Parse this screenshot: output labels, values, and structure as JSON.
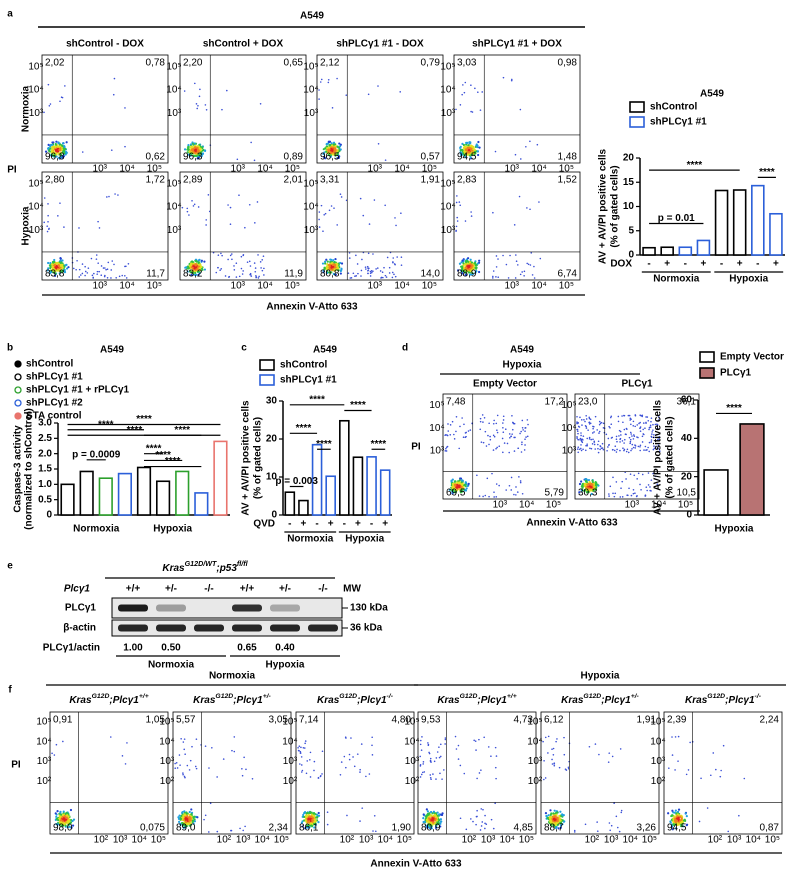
{
  "panel_a": {
    "label": "a",
    "title": "A549",
    "flow": {
      "columns": [
        "shControl - DOX",
        "shControl + DOX",
        "shPLCγ1 #1 - DOX",
        "shPLCγ1 #1 + DOX"
      ],
      "rows": [
        "Normoxia",
        "Hypoxia"
      ],
      "y_label": "PI",
      "x_label": "Annexin V-Atto 633",
      "ticks": [
        "10³",
        "10⁴",
        "10⁵"
      ],
      "quadrants": [
        [
          [
            "2,02",
            "0,78",
            "96,8",
            "0,62"
          ],
          [
            "2,20",
            "0,65",
            "96,3",
            "0,89"
          ],
          [
            "2,12",
            "0,79",
            "96,5",
            "0,57"
          ],
          [
            "3,03",
            "0,98",
            "94,5",
            "1,48"
          ]
        ],
        [
          [
            "2,80",
            "1,72",
            "83,8",
            "11,7"
          ],
          [
            "2,89",
            "2,01",
            "83,2",
            "11,9"
          ],
          [
            "3,31",
            "1,91",
            "80,8",
            "14,0"
          ],
          [
            "2,83",
            "1,52",
            "88,9",
            "6,74"
          ]
        ]
      ]
    },
    "chart": {
      "type": "bar",
      "title": "A549",
      "y_label": "AV + AV/PI positive cells",
      "y_sublabel": "(% of gated cells)",
      "series": [
        {
          "name": "shControl",
          "color": "#000000",
          "values": [
            1.5,
            1.6,
            null,
            null,
            13.3,
            13.4,
            null,
            null
          ]
        },
        {
          "name": "shPLCγ1 #1",
          "color": "#2b5fd9",
          "values": [
            null,
            null,
            1.6,
            3.0,
            null,
            null,
            14.3,
            8.5
          ]
        }
      ],
      "x_row": {
        "label": "DOX",
        "values": [
          "-",
          "+",
          "-",
          "+",
          "-",
          "+",
          "-",
          "+"
        ]
      },
      "groups": [
        "Normoxia",
        "Hypoxia"
      ],
      "ylim": [
        0,
        20
      ],
      "yticks": [
        0,
        5,
        10,
        15,
        20
      ],
      "annotations": [
        "****",
        "p = 0.01",
        "****"
      ]
    }
  },
  "panel_b": {
    "label": "b",
    "chart": {
      "type": "bar",
      "title": "A549",
      "y_label": "Caspase-3 activity",
      "y_sublabel": "(normalized to shControl)",
      "series": [
        {
          "name": "shControl",
          "color": "#000000",
          "marker_filled": true,
          "values": [
            1.0,
            null,
            null,
            null,
            1.55,
            null,
            null,
            null,
            null
          ]
        },
        {
          "name": "shPLCγ1 #1",
          "color": "#000000",
          "marker_filled": false,
          "values": [
            null,
            1.42,
            null,
            null,
            null,
            1.1,
            null,
            null,
            null
          ]
        },
        {
          "name": "shPLCγ1 #1 + rPLCγ1",
          "color": "#2ca02c",
          "marker_filled": false,
          "values": [
            null,
            null,
            1.2,
            null,
            null,
            null,
            1.42,
            null,
            null
          ]
        },
        {
          "name": "shPLCγ1 #2",
          "color": "#2b5fd9",
          "marker_filled": false,
          "values": [
            null,
            null,
            null,
            1.35,
            null,
            null,
            null,
            0.72,
            null
          ]
        },
        {
          "name": "STA control",
          "color": "#e9746d",
          "marker_filled": true,
          "values": [
            null,
            null,
            null,
            null,
            null,
            null,
            null,
            null,
            2.4
          ]
        }
      ],
      "groups": [
        "Normoxia",
        "Hypoxia"
      ],
      "ylim": [
        0,
        3
      ],
      "yticks": [
        0,
        0.5,
        {
          "value": 1,
          "label": "1.0"
        },
        1.5,
        {
          "value": 2,
          "label": "2.0"
        },
        2.5,
        {
          "value": 3,
          "label": "3.0"
        }
      ],
      "annotations": [
        "****",
        "****",
        "****",
        "p = 0.0009",
        "****",
        "****",
        "****",
        "****"
      ]
    }
  },
  "panel_c": {
    "label": "c",
    "chart": {
      "type": "bar",
      "title": "A549",
      "y_label": "AV + AV/PI positive cells",
      "y_sublabel": "(% of gated cells)",
      "series": [
        {
          "name": "shControl",
          "color": "#000000",
          "values": [
            6.0,
            3.8,
            null,
            null,
            24.8,
            15.2,
            null,
            null
          ]
        },
        {
          "name": "shPLCγ1 #1",
          "color": "#2b5fd9",
          "values": [
            null,
            null,
            18.5,
            10.2,
            null,
            null,
            15.3,
            11.8
          ]
        }
      ],
      "x_row": {
        "label": "QVD",
        "values": [
          "-",
          "+",
          "-",
          "+",
          "-",
          "+",
          "-",
          "+"
        ]
      },
      "groups": [
        "Normoxia",
        "Hypoxia"
      ],
      "ylim": [
        0,
        30
      ],
      "yticks": [
        0,
        10,
        20,
        30
      ],
      "annotations": [
        "p = 0.003",
        "****",
        "****",
        "****",
        "****",
        "****"
      ]
    }
  },
  "panel_d": {
    "label": "d",
    "title": "A549",
    "subtitle": "Hypoxia",
    "flow": {
      "columns": [
        "Empty Vector",
        "PLCγ1"
      ],
      "y_label": "PI",
      "x_label": "Annexin V-Atto 633",
      "ticks": [
        "10³",
        "10⁴",
        "10⁵"
      ],
      "quadrants": [
        [
          "7,48",
          "17,2",
          "69,5",
          "5,79"
        ],
        [
          "23,0",
          "36,1",
          "30,3",
          "10,5"
        ]
      ]
    },
    "chart": {
      "type": "bar",
      "y_label": "AV + AV/PI positive cells",
      "y_sublabel": "(% of gated cells)",
      "series": [
        {
          "name": "Empty Vector",
          "color": "#000000",
          "fill": "#ffffff",
          "values": [
            23.5,
            null
          ]
        },
        {
          "name": "PLCγ1",
          "color": "#000000",
          "fill": "#b87373",
          "values": [
            null,
            47.5
          ]
        }
      ],
      "groups": [
        "Hypoxia"
      ],
      "ylim": [
        0,
        60
      ],
      "yticks": [
        0,
        20,
        40,
        60
      ],
      "annotations": [
        "****"
      ]
    }
  },
  "panel_e": {
    "label": "e",
    "title": [
      "Kras",
      "G12D/WT",
      ";p53",
      "fl/fl"
    ],
    "row_label": "Plcγ1",
    "genotypes": [
      "+/+",
      "+/-",
      "-/-",
      "+/+",
      "+/-",
      "-/-"
    ],
    "mw_label": "MW",
    "blots": [
      {
        "name": "PLCγ1",
        "mw": "130 kDa"
      },
      {
        "name": "β-actin",
        "mw": "36 kDa"
      }
    ],
    "ratio": {
      "label": "PLCγ1/actin",
      "values": [
        "1.00",
        "0.50",
        null,
        "0.65",
        "0.40",
        null
      ]
    },
    "groups": [
      "Normoxia",
      "Hypoxia"
    ]
  },
  "panel_f": {
    "label": "f",
    "groups": [
      "Normoxia",
      "Hypoxia"
    ],
    "columns": [
      [
        "Kras",
        "G12D",
        ";Plcγ1",
        "+/+"
      ],
      [
        "Kras",
        "G12D",
        ";Plcγ1",
        "+/-"
      ],
      [
        "Kras",
        "G12D",
        ";Plcγ1",
        "-/-"
      ],
      [
        "Kras",
        "G12D",
        ";Plcγ1",
        "+/+"
      ],
      [
        "Kras",
        "G12D",
        ";Plcγ1",
        "+/-"
      ],
      [
        "Kras",
        "G12D",
        ";Plcγ1",
        "-/-"
      ]
    ],
    "y_label": "PI",
    "x_label": "Annexin V-Atto 633",
    "ticks": [
      "10²",
      "10³",
      "10⁴",
      "10⁵"
    ],
    "quadrants": [
      [
        "0,91",
        "1,05",
        "98,0",
        "0,075"
      ],
      [
        "5,57",
        "3,05",
        "89,0",
        "2,34"
      ],
      [
        "7,14",
        "4,80",
        "86,1",
        "1,90"
      ],
      [
        "9,53",
        "4,73",
        "80,9",
        "4,85"
      ],
      [
        "6,12",
        "1,91",
        "88,7",
        "3,26"
      ],
      [
        "2,39",
        "2,24",
        "94,5",
        "0,87"
      ]
    ]
  }
}
